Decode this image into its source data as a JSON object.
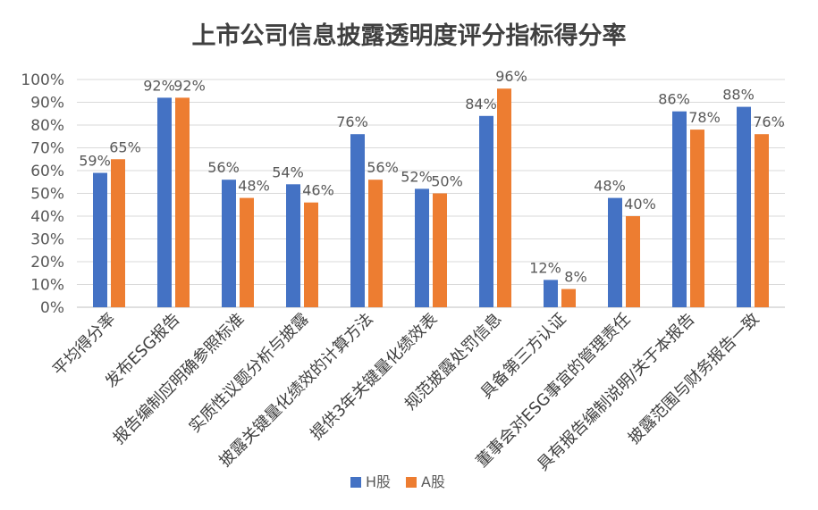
{
  "chart_data": {
    "type": "bar",
    "title": "上市公司信息披露透明度评分指标得分率",
    "categories": [
      "平均得分率",
      "发布ESG报告",
      "报告编制应明确参照标准",
      "实质性议题分析与披露",
      "披露关键量化绩效的计算方法",
      "提供3年关键量化绩效表",
      "规范披露处罚信息",
      "具备第三方认证",
      "董事会对ESG事宜的管理责任",
      "具有报告编制说明/关于本报告",
      "披露范围与财务报告一致"
    ],
    "series": [
      {
        "name": "H股",
        "color": "#4472C4",
        "values": [
          59,
          92,
          56,
          54,
          76,
          52,
          84,
          12,
          48,
          86,
          88
        ],
        "labels": [
          "59%",
          "92%",
          "56%",
          "54%",
          "76%",
          "52%",
          "84%",
          "12%",
          "48%",
          "86%",
          "88%"
        ]
      },
      {
        "name": "A股",
        "color": "#ED7D31",
        "values": [
          65,
          92,
          48,
          46,
          56,
          50,
          96,
          8,
          40,
          78,
          76
        ],
        "labels": [
          "65%",
          "92%",
          "48%",
          "46%",
          "56%",
          "50%",
          "96%",
          "8%",
          "40%",
          "78%",
          "76%"
        ]
      }
    ],
    "y_ticks": [
      "0%",
      "10%",
      "20%",
      "30%",
      "40%",
      "50%",
      "60%",
      "70%",
      "80%",
      "90%",
      "100%"
    ],
    "ylim": [
      0,
      100
    ],
    "grid": true,
    "legend_position": "bottom"
  }
}
